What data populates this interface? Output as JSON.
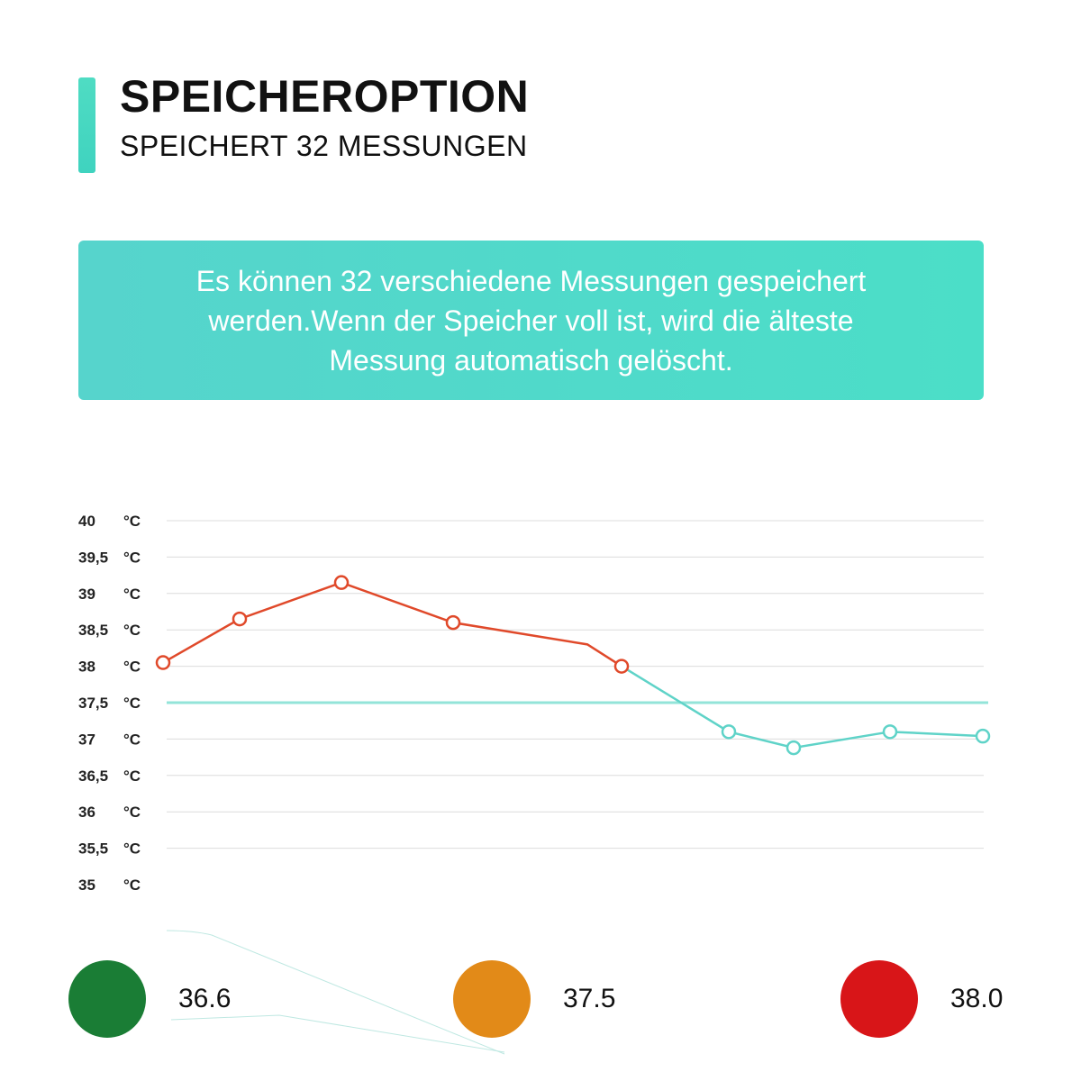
{
  "header": {
    "title": "SPEICHEROPTION",
    "subtitle": "SPEICHERT 32 MESSUNGEN"
  },
  "info": {
    "text": "Es können 32 verschiedene Messungen gespeichert werden.Wenn der Speicher voll ist, wird die älteste Messung automatisch gelöscht."
  },
  "chart_data": {
    "type": "line",
    "ylim": [
      35,
      40
    ],
    "y_ticks": [
      "40",
      "39,5",
      "39",
      "38,5",
      "38",
      "37,5",
      "37",
      "36,5",
      "36",
      "35,5",
      "35"
    ],
    "y_unit": "°C",
    "grid": true,
    "threshold": 37.5,
    "series": [
      {
        "color": "#e0492a",
        "values": [
          38.05,
          38.65,
          39.15,
          38.6,
          38.3,
          38.0
        ]
      },
      {
        "color": "#5fd3c8",
        "values": [
          38.0,
          37.1,
          36.88,
          37.1,
          37.04
        ]
      }
    ],
    "colors": {
      "threshold": "#93e4d9",
      "grid": "#dcdcdc"
    }
  },
  "legend": [
    {
      "label": "36.6",
      "color": "#1a7d35"
    },
    {
      "label": "37.5",
      "color": "#e28a18"
    },
    {
      "label": "38.0",
      "color": "#d81518"
    }
  ]
}
